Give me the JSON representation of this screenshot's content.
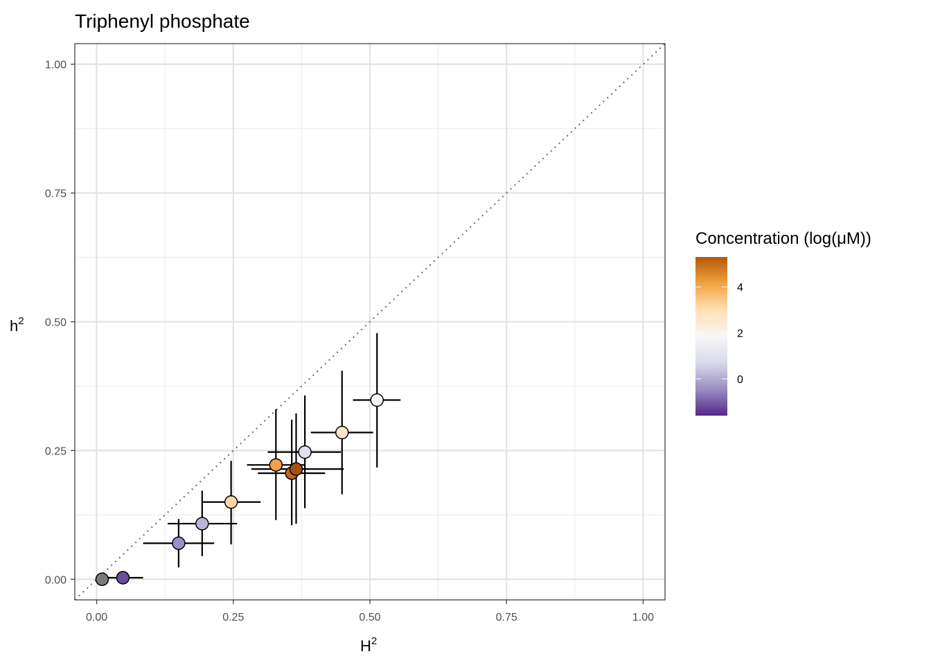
{
  "chart_data": {
    "type": "scatter",
    "title": "Triphenyl phosphate",
    "xlabel_base": "H",
    "ylabel_base": "h",
    "label_superscript": "2",
    "xlim": [
      -0.04,
      1.04
    ],
    "ylim": [
      -0.04,
      1.04
    ],
    "x_ticks": [
      0,
      0.25,
      0.5,
      0.75,
      1
    ],
    "x_tick_labels": [
      "0.00",
      "0.25",
      "0.50",
      "0.75",
      "1.00"
    ],
    "y_ticks": [
      0,
      0.25,
      0.5,
      0.75,
      1
    ],
    "y_tick_labels": [
      "0.00",
      "0.25",
      "0.50",
      "0.75",
      "1.00"
    ],
    "minor_ticks": [
      0.125,
      0.375,
      0.625,
      0.875
    ],
    "grid": true,
    "reference_line": "y = x",
    "points": [
      {
        "x": 0.01,
        "y": 0.0,
        "x_lo": 0.0,
        "x_hi": 0.02,
        "y_lo": 0.0,
        "y_hi": 0.0,
        "color": "#7a7a7a"
      },
      {
        "x": 0.048,
        "y": 0.003,
        "x_lo": 0.02,
        "x_hi": 0.085,
        "y_lo": 0.0,
        "y_hi": 0.006,
        "color": "#6a4c9c"
      },
      {
        "x": 0.15,
        "y": 0.07,
        "x_lo": 0.085,
        "x_hi": 0.215,
        "y_lo": 0.023,
        "y_hi": 0.117,
        "color": "#9a90c6"
      },
      {
        "x": 0.193,
        "y": 0.108,
        "x_lo": 0.13,
        "x_hi": 0.257,
        "y_lo": 0.045,
        "y_hi": 0.172,
        "color": "#bbb4d9"
      },
      {
        "x": 0.246,
        "y": 0.15,
        "x_lo": 0.193,
        "x_hi": 0.3,
        "y_lo": 0.068,
        "y_hi": 0.23,
        "color": "#fdd6a4"
      },
      {
        "x": 0.328,
        "y": 0.222,
        "x_lo": 0.275,
        "x_hi": 0.382,
        "y_lo": 0.115,
        "y_hi": 0.33,
        "color": "#f0a04b"
      },
      {
        "x": 0.357,
        "y": 0.206,
        "x_lo": 0.295,
        "x_hi": 0.418,
        "y_lo": 0.105,
        "y_hi": 0.31,
        "color": "#c4661a"
      },
      {
        "x": 0.365,
        "y": 0.214,
        "x_lo": 0.283,
        "x_hi": 0.452,
        "y_lo": 0.108,
        "y_hi": 0.322,
        "color": "#a6520f"
      },
      {
        "x": 0.381,
        "y": 0.247,
        "x_lo": 0.313,
        "x_hi": 0.447,
        "y_lo": 0.138,
        "y_hi": 0.357,
        "color": "#e1e1ee"
      },
      {
        "x": 0.449,
        "y": 0.285,
        "x_lo": 0.392,
        "x_hi": 0.506,
        "y_lo": 0.165,
        "y_hi": 0.405,
        "color": "#fae6cd"
      },
      {
        "x": 0.513,
        "y": 0.348,
        "x_lo": 0.469,
        "x_hi": 0.556,
        "y_lo": 0.217,
        "y_hi": 0.478,
        "color": "#f5f5f5"
      }
    ],
    "legend": {
      "title": "Concentration (log(μM))",
      "placement": "right",
      "min": -1.6,
      "max": 5.3,
      "ticks": [
        0,
        2,
        4
      ],
      "tick_labels": [
        "0",
        "2",
        "4"
      ],
      "colors": [
        "#542788",
        "#998ec3",
        "#d8daeb",
        "#f7f7f7",
        "#fee0b6",
        "#f1a340",
        "#b35806"
      ]
    }
  }
}
